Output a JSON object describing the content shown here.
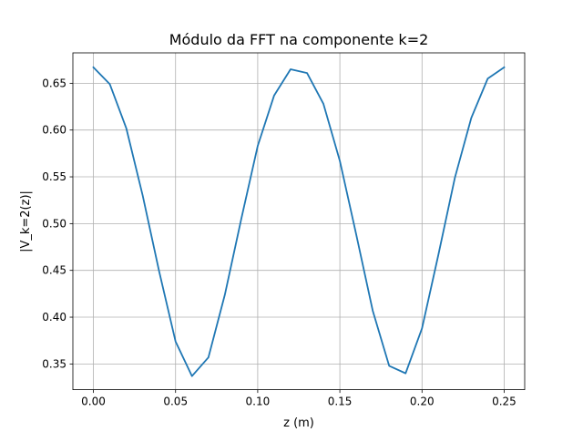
{
  "chart_data": {
    "type": "line",
    "title": "Módulo da FFT na componente k=2",
    "xlabel": "z (m)",
    "ylabel": "|V_k=2(z)|",
    "xlim": [
      -0.0125,
      0.2625
    ],
    "ylim": [
      0.3225,
      0.6825
    ],
    "grid": true,
    "x_ticks": [
      {
        "value": 0.0,
        "label": "0.00"
      },
      {
        "value": 0.05,
        "label": "0.05"
      },
      {
        "value": 0.1,
        "label": "0.10"
      },
      {
        "value": 0.15,
        "label": "0.15"
      },
      {
        "value": 0.2,
        "label": "0.20"
      },
      {
        "value": 0.25,
        "label": "0.25"
      }
    ],
    "y_ticks": [
      {
        "value": 0.35,
        "label": "0.35"
      },
      {
        "value": 0.4,
        "label": "0.40"
      },
      {
        "value": 0.45,
        "label": "0.45"
      },
      {
        "value": 0.5,
        "label": "0.50"
      },
      {
        "value": 0.55,
        "label": "0.55"
      },
      {
        "value": 0.6,
        "label": "0.60"
      },
      {
        "value": 0.65,
        "label": "0.65"
      }
    ],
    "series": [
      {
        "color": "#1f77b4",
        "x": [
          0.0,
          0.01,
          0.02,
          0.03,
          0.04,
          0.05,
          0.06,
          0.07,
          0.08,
          0.09,
          0.1,
          0.11,
          0.12,
          0.13,
          0.14,
          0.15,
          0.16,
          0.17,
          0.18,
          0.19,
          0.2,
          0.21,
          0.22,
          0.23,
          0.24,
          0.25
        ],
        "y": [
          0.667,
          0.649,
          0.602,
          0.53,
          0.449,
          0.374,
          0.337,
          0.357,
          0.424,
          0.505,
          0.583,
          0.637,
          0.665,
          0.661,
          0.628,
          0.567,
          0.488,
          0.407,
          0.348,
          0.34,
          0.388,
          0.467,
          0.549,
          0.613,
          0.655,
          0.667
        ]
      }
    ]
  }
}
